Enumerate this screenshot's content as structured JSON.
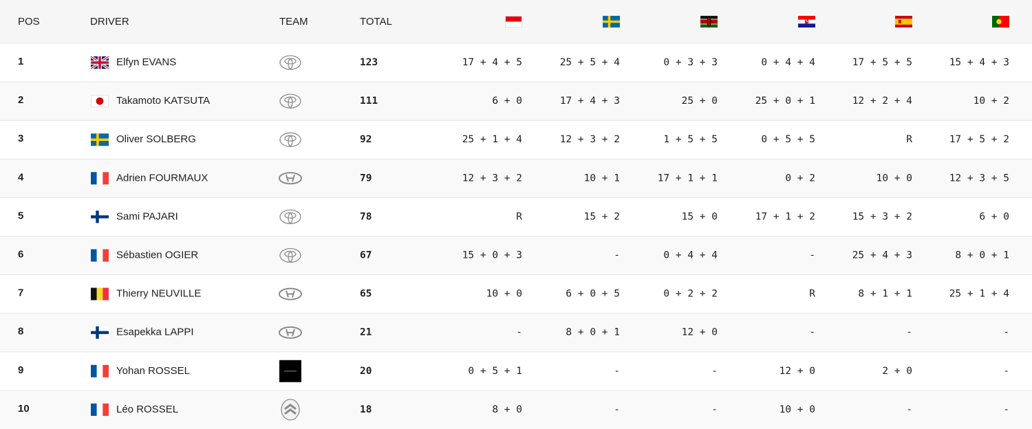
{
  "table": {
    "headers": [
      "POS",
      "DRIVER",
      "TEAM",
      "TOTAL"
    ],
    "rows": [
      {
        "pos": 1,
        "driver": "Elfyn EVANS",
        "total": 123,
        "results": [
          "17 + 4 + 5",
          "25 + 5 + 4",
          "0 + 3 + 3",
          "0 + 4 + 4",
          "17 + 5 + 5",
          "15 + 4 + 3"
        ]
      },
      {
        "pos": 2,
        "driver": "Takamoto KATSUTA",
        "total": 111,
        "results": [
          "6 + 0",
          "17 + 4 + 3",
          "25 + 0",
          "25 + 0 + 1",
          "12 + 2 + 4",
          "10 + 2"
        ]
      },
      {
        "pos": 3,
        "driver": "Oliver SOLBERG",
        "total": 92,
        "results": [
          "25 + 1 + 4",
          "12 + 3 + 2",
          "1 + 5 + 5",
          "0 + 5 + 5",
          "R",
          "17 + 5 + 2"
        ]
      },
      {
        "pos": 4,
        "driver": "Adrien FOURMAUX",
        "total": 79,
        "results": [
          "12 + 3 + 2",
          "10 + 1",
          "17 + 1 + 1",
          "0 + 2",
          "10 + 0",
          "12 + 3 + 5"
        ]
      },
      {
        "pos": 5,
        "driver": "Sami PAJARI",
        "total": 78,
        "results": [
          "R",
          "15 + 2",
          "15 + 0",
          "17 + 1 + 2",
          "15 + 3 + 2",
          "6 + 0"
        ]
      },
      {
        "pos": 6,
        "driver": "Sébastien OGIER",
        "total": 67,
        "results": [
          "15 + 0 + 3",
          "-",
          "0 + 4 + 4",
          "-",
          "25 + 4 + 3",
          "8 + 0 + 1"
        ]
      },
      {
        "pos": 7,
        "driver": "Thierry NEUVILLE",
        "total": 65,
        "results": [
          "10 + 0",
          "6 + 0 + 5",
          "0 + 2 + 2",
          "R",
          "8 + 1 + 1",
          "25 + 1 + 4"
        ]
      },
      {
        "pos": 8,
        "driver": "Esapekka LAPPI",
        "total": 21,
        "results": [
          "-",
          "8 + 0 + 1",
          "12 + 0",
          "-",
          "-",
          "-"
        ]
      },
      {
        "pos": 9,
        "driver": "Yohan ROSSEL",
        "total": 20,
        "results": [
          "0 + 5 + 1",
          "-",
          "-",
          "12 + 0",
          "2 + 0",
          "-"
        ]
      },
      {
        "pos": 10,
        "driver": "Léo ROSSEL",
        "total": 18,
        "results": [
          "8 + 0",
          "-",
          "-",
          "10 + 0",
          "-",
          "-"
        ]
      }
    ]
  }
}
